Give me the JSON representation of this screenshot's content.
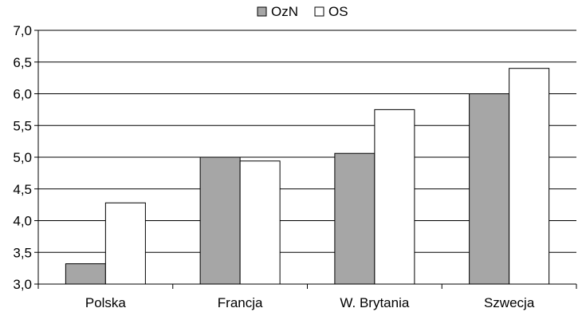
{
  "chart_data": {
    "type": "bar",
    "categories": [
      "Polska",
      "Francja",
      "W. Brytania",
      "Szwecja"
    ],
    "series": [
      {
        "name": "OzN",
        "values": [
          3.32,
          5.0,
          5.06,
          6.0
        ],
        "color": "#a6a6a6"
      },
      {
        "name": "OS",
        "values": [
          4.28,
          4.94,
          5.75,
          6.4
        ],
        "color": "#ffffff"
      }
    ],
    "ylim": [
      3.0,
      7.0
    ],
    "yticks": [
      "3,0",
      "3,5",
      "4,0",
      "4,5",
      "5,0",
      "5,5",
      "6,0",
      "6,5",
      "7,0"
    ],
    "grid": true,
    "legend": "top-center",
    "title": "",
    "xlabel": "",
    "ylabel": ""
  }
}
